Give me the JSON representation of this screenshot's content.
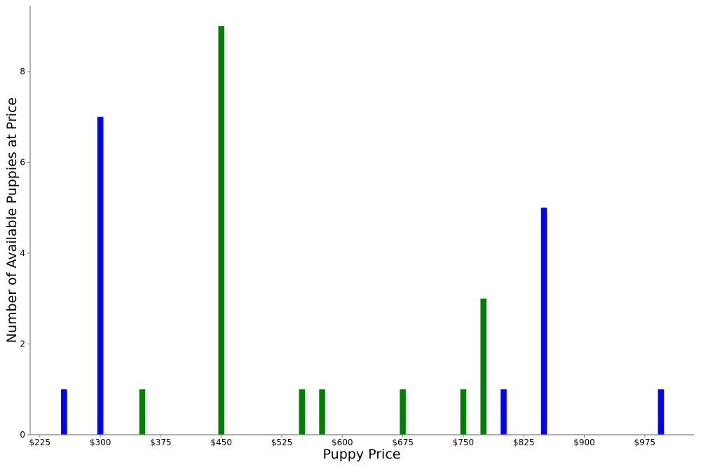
{
  "chart_data": {
    "type": "bar",
    "title": "",
    "xlabel": "Puppy Price",
    "ylabel": "Number of Available Puppies at Price",
    "xlim": [
      213,
      1036
    ],
    "ylim": [
      0,
      9.45
    ],
    "grid": false,
    "xticks": [
      225,
      300,
      375,
      450,
      525,
      600,
      675,
      750,
      825,
      900,
      975
    ],
    "xtick_labels": [
      "$225",
      "$300",
      "$375",
      "$450",
      "$525",
      "$600",
      "$675",
      "$750",
      "$825",
      "$900",
      "$975"
    ],
    "yticks": [
      0,
      2,
      4,
      6,
      8
    ],
    "ytick_labels": [
      "0",
      "2",
      "4",
      "6",
      "8"
    ],
    "bar_width": 7.4,
    "series": [
      {
        "color": "#0000ff",
        "x": [
          255,
          300,
          800,
          850,
          995
        ],
        "values": [
          1,
          7,
          1,
          5,
          1
        ]
      },
      {
        "color": "#008000",
        "x": [
          352,
          450,
          550,
          575,
          675,
          750,
          775
        ],
        "values": [
          1,
          9,
          1,
          1,
          1,
          1,
          3
        ]
      }
    ]
  }
}
